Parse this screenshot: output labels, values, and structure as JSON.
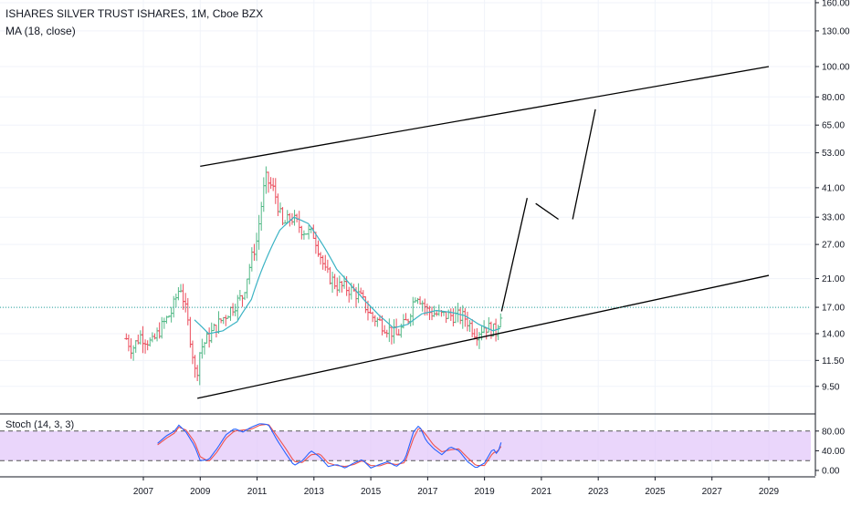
{
  "header": {
    "title": "ISHARES SILVER TRUST ISHARES, 1M, Cboe BZX",
    "indicator": "MA (18, close)"
  },
  "stoch": {
    "label": "Stoch (14, 3, 3)",
    "ticks": [
      "80.00",
      "40.00",
      "0.00"
    ],
    "tick_values": [
      80,
      40,
      0
    ],
    "band": [
      20,
      80
    ]
  },
  "colors": {
    "up": "#53b987",
    "down": "#eb4d5c",
    "ma": "#3bb3c4",
    "trendline": "#000000",
    "stoch_k": "#2962ff",
    "stoch_d": "#ef5350",
    "stoch_band": "#e1c4fa",
    "price_line": "#26a69a"
  },
  "chart_data": {
    "type": "candlestick",
    "title": "ISHARES SILVER TRUST ISHARES, 1M, Cboe BZX",
    "y_scale": "log",
    "ylim": [
      8,
      160
    ],
    "y_ticks": [
      "160.00",
      "130.00",
      "100.00",
      "80.00",
      "65.00",
      "53.00",
      "41.00",
      "33.00",
      "27.00",
      "21.00",
      "17.00",
      "14.00",
      "11.50",
      "9.50"
    ],
    "y_tick_values": [
      160,
      130,
      100,
      80,
      65,
      53,
      41,
      33,
      27,
      21,
      17,
      14,
      11.5,
      9.5
    ],
    "x_ticks": [
      "2007",
      "2009",
      "2011",
      "2013",
      "2015",
      "2017",
      "2019",
      "2021",
      "2023",
      "2025",
      "2027",
      "2029"
    ],
    "x_tick_values": [
      2007,
      2009,
      2011,
      2013,
      2015,
      2017,
      2019,
      2021,
      2023,
      2025,
      2027,
      2029
    ],
    "xlim": [
      2006.0,
      2030.3
    ],
    "last_price": 17.0,
    "price_anchors": [
      [
        2006.4,
        13.5
      ],
      [
        2006.6,
        12.5
      ],
      [
        2006.9,
        13.8
      ],
      [
        2007.3,
        13.0
      ],
      [
        2007.6,
        14.5
      ],
      [
        2008.0,
        16.5
      ],
      [
        2008.3,
        20.0
      ],
      [
        2008.6,
        14.5
      ],
      [
        2008.85,
        10.0
      ],
      [
        2009.0,
        12.5
      ],
      [
        2009.5,
        14.5
      ],
      [
        2010.0,
        16.5
      ],
      [
        2010.5,
        18.5
      ],
      [
        2011.0,
        28.0
      ],
      [
        2011.3,
        44.0
      ],
      [
        2011.6,
        40.0
      ],
      [
        2011.9,
        31.0
      ],
      [
        2012.2,
        33.0
      ],
      [
        2012.6,
        30.0
      ],
      [
        2013.0,
        29.0
      ],
      [
        2013.4,
        22.0
      ],
      [
        2013.8,
        20.0
      ],
      [
        2014.2,
        19.5
      ],
      [
        2014.6,
        18.5
      ],
      [
        2015.0,
        16.0
      ],
      [
        2015.5,
        14.8
      ],
      [
        2015.9,
        13.8
      ],
      [
        2016.3,
        15.5
      ],
      [
        2016.6,
        19.0
      ],
      [
        2017.0,
        16.5
      ],
      [
        2017.5,
        16.0
      ],
      [
        2017.9,
        16.0
      ],
      [
        2018.3,
        15.8
      ],
      [
        2018.7,
        14.0
      ],
      [
        2019.0,
        14.8
      ],
      [
        2019.4,
        14.2
      ],
      [
        2019.6,
        16.8
      ]
    ],
    "ma_anchors": [
      [
        2008.8,
        15.5
      ],
      [
        2009.3,
        14.0
      ],
      [
        2009.8,
        14.3
      ],
      [
        2010.3,
        15.3
      ],
      [
        2010.8,
        18.0
      ],
      [
        2011.3,
        24.0
      ],
      [
        2011.8,
        30.0
      ],
      [
        2012.3,
        33.0
      ],
      [
        2012.8,
        31.5
      ],
      [
        2013.3,
        27.0
      ],
      [
        2013.8,
        22.5
      ],
      [
        2014.3,
        20.0
      ],
      [
        2014.8,
        17.8
      ],
      [
        2015.3,
        16.0
      ],
      [
        2015.8,
        14.6
      ],
      [
        2016.3,
        15.0
      ],
      [
        2016.8,
        16.2
      ],
      [
        2017.3,
        16.6
      ],
      [
        2017.8,
        16.4
      ],
      [
        2018.3,
        16.0
      ],
      [
        2018.8,
        15.0
      ],
      [
        2019.3,
        14.3
      ],
      [
        2019.6,
        14.6
      ]
    ],
    "trendlines": [
      {
        "name": "upper-channel",
        "points": [
          [
            2009.0,
            48.0
          ],
          [
            2029.0,
            100.0
          ]
        ]
      },
      {
        "name": "lower-channel",
        "points": [
          [
            2008.9,
            8.7
          ],
          [
            2029.0,
            21.5
          ]
        ]
      },
      {
        "name": "projection-leg-1",
        "points": [
          [
            2019.6,
            16.5
          ],
          [
            2020.5,
            38.0
          ]
        ]
      },
      {
        "name": "projection-leg-2",
        "points": [
          [
            2020.8,
            36.5
          ],
          [
            2021.6,
            32.5
          ]
        ]
      },
      {
        "name": "projection-leg-3",
        "points": [
          [
            2022.1,
            32.5
          ],
          [
            2022.9,
            73.0
          ]
        ]
      }
    ],
    "stoch_k_anchors": [
      [
        2007.5,
        55
      ],
      [
        2007.8,
        70
      ],
      [
        2008.1,
        80
      ],
      [
        2008.25,
        92
      ],
      [
        2008.5,
        78
      ],
      [
        2008.8,
        50
      ],
      [
        2009.0,
        20
      ],
      [
        2009.3,
        22
      ],
      [
        2009.6,
        45
      ],
      [
        2009.9,
        72
      ],
      [
        2010.2,
        85
      ],
      [
        2010.5,
        78
      ],
      [
        2010.8,
        88
      ],
      [
        2011.1,
        95
      ],
      [
        2011.4,
        93
      ],
      [
        2011.7,
        62
      ],
      [
        2012.0,
        35
      ],
      [
        2012.3,
        10
      ],
      [
        2012.6,
        20
      ],
      [
        2012.9,
        40
      ],
      [
        2013.2,
        28
      ],
      [
        2013.5,
        8
      ],
      [
        2013.8,
        12
      ],
      [
        2014.1,
        5
      ],
      [
        2014.4,
        15
      ],
      [
        2014.7,
        22
      ],
      [
        2015.0,
        5
      ],
      [
        2015.3,
        12
      ],
      [
        2015.6,
        18
      ],
      [
        2015.9,
        8
      ],
      [
        2016.2,
        22
      ],
      [
        2016.5,
        78
      ],
      [
        2016.7,
        92
      ],
      [
        2016.95,
        60
      ],
      [
        2017.2,
        45
      ],
      [
        2017.5,
        32
      ],
      [
        2017.8,
        48
      ],
      [
        2018.1,
        40
      ],
      [
        2018.4,
        18
      ],
      [
        2018.7,
        5
      ],
      [
        2019.0,
        15
      ],
      [
        2019.3,
        45
      ],
      [
        2019.45,
        32
      ],
      [
        2019.6,
        60
      ]
    ],
    "stoch_d_anchors": [
      [
        2007.5,
        52
      ],
      [
        2007.8,
        65
      ],
      [
        2008.1,
        76
      ],
      [
        2008.25,
        88
      ],
      [
        2008.5,
        82
      ],
      [
        2008.8,
        58
      ],
      [
        2009.0,
        28
      ],
      [
        2009.3,
        18
      ],
      [
        2009.6,
        38
      ],
      [
        2009.9,
        65
      ],
      [
        2010.2,
        80
      ],
      [
        2010.5,
        82
      ],
      [
        2010.8,
        84
      ],
      [
        2011.1,
        92
      ],
      [
        2011.4,
        94
      ],
      [
        2011.7,
        70
      ],
      [
        2012.0,
        45
      ],
      [
        2012.3,
        18
      ],
      [
        2012.6,
        16
      ],
      [
        2012.9,
        32
      ],
      [
        2013.2,
        34
      ],
      [
        2013.5,
        15
      ],
      [
        2013.8,
        10
      ],
      [
        2014.1,
        8
      ],
      [
        2014.4,
        12
      ],
      [
        2014.7,
        20
      ],
      [
        2015.0,
        10
      ],
      [
        2015.3,
        9
      ],
      [
        2015.6,
        15
      ],
      [
        2015.9,
        12
      ],
      [
        2016.2,
        16
      ],
      [
        2016.5,
        65
      ],
      [
        2016.7,
        88
      ],
      [
        2016.95,
        72
      ],
      [
        2017.2,
        52
      ],
      [
        2017.5,
        38
      ],
      [
        2017.8,
        42
      ],
      [
        2018.1,
        44
      ],
      [
        2018.4,
        26
      ],
      [
        2018.7,
        10
      ],
      [
        2019.0,
        10
      ],
      [
        2019.3,
        36
      ],
      [
        2019.45,
        38
      ],
      [
        2019.6,
        50
      ]
    ]
  }
}
